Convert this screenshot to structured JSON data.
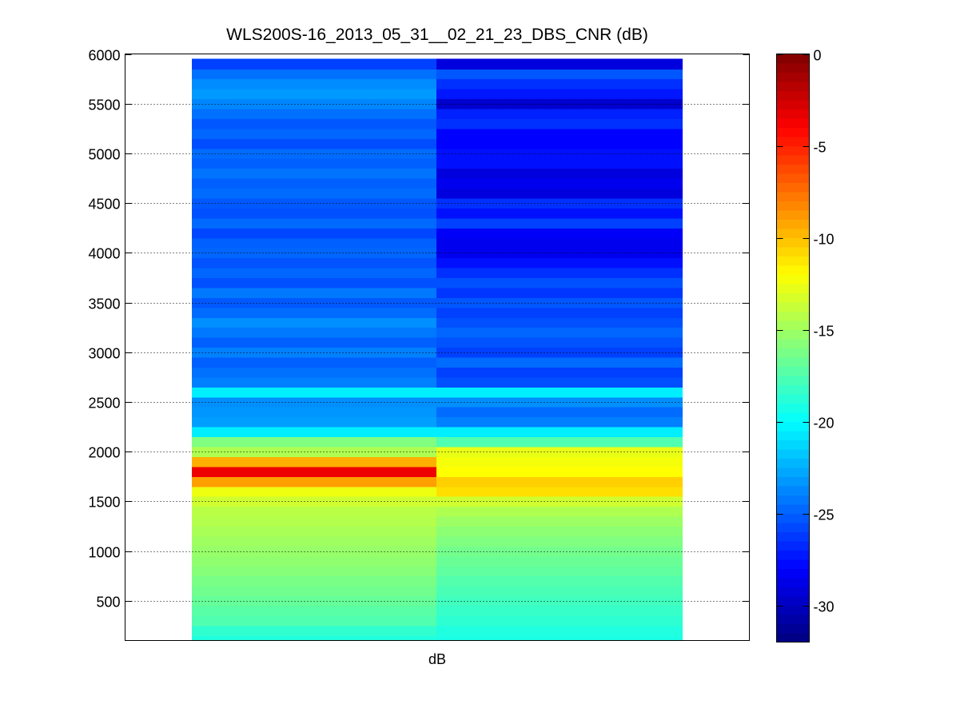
{
  "chart_data": {
    "type": "heatmap",
    "title": "WLS200S-16_2013_05_31__02_21_23_DBS_CNR (dB)",
    "xlabel": "dB",
    "ylabel": "",
    "xticks": [],
    "ylim": [
      100,
      6000
    ],
    "yticks": [
      500,
      1000,
      1500,
      2000,
      2500,
      3000,
      3500,
      4000,
      4500,
      5000,
      5500,
      6000
    ],
    "grid": true,
    "colormap": "jet",
    "colorbar": {
      "clim": [
        -32,
        0
      ],
      "ticks": [
        0,
        -5,
        -10,
        -15,
        -20,
        -25,
        -30
      ]
    },
    "bin_height": 100,
    "columns": [
      {
        "y": [
          100,
          200,
          300,
          400,
          500,
          600,
          700,
          800,
          900,
          1000,
          1100,
          1200,
          1300,
          1400,
          1500,
          1600,
          1700,
          1800,
          1900,
          2000,
          2100,
          2200,
          2300,
          2400,
          2500,
          2600,
          2700,
          2800,
          2900,
          3000,
          3100,
          3200,
          3300,
          3400,
          3500,
          3600,
          3700,
          3800,
          3900,
          4000,
          4100,
          4200,
          4300,
          4400,
          4500,
          4600,
          4700,
          4800,
          4900,
          5000,
          5100,
          5200,
          5300,
          5400,
          5500,
          5600,
          5700,
          5800,
          5900
        ],
        "values": [
          -19.0,
          -18.5,
          -17.5,
          -17.2,
          -16.8,
          -16.5,
          -16.2,
          -15.8,
          -15.5,
          -15.3,
          -15.0,
          -14.7,
          -14.4,
          -14.2,
          -13.5,
          -12.5,
          -9.0,
          -3.5,
          -9.5,
          -14.5,
          -16.0,
          -20.5,
          -23.0,
          -23.3,
          -23.5,
          -20.5,
          -24.0,
          -24.5,
          -25.0,
          -24.0,
          -25.0,
          -24.2,
          -23.5,
          -24.6,
          -25.2,
          -24.2,
          -25.5,
          -24.8,
          -25.4,
          -24.8,
          -25.0,
          -25.8,
          -24.7,
          -25.5,
          -25.2,
          -24.6,
          -25.0,
          -24.4,
          -25.0,
          -24.6,
          -25.6,
          -24.8,
          -25.3,
          -24.5,
          -23.8,
          -23.2,
          -23.6,
          -24.5,
          -26.0
        ]
      },
      {
        "y": [
          100,
          200,
          300,
          400,
          500,
          600,
          700,
          800,
          900,
          1000,
          1100,
          1200,
          1300,
          1400,
          1500,
          1600,
          1700,
          1800,
          1900,
          2000,
          2100,
          2200,
          2300,
          2400,
          2500,
          2600,
          2700,
          2800,
          2900,
          3000,
          3100,
          3200,
          3300,
          3400,
          3500,
          3600,
          3700,
          3800,
          3900,
          4000,
          4100,
          4200,
          4300,
          4400,
          4500,
          4600,
          4700,
          4800,
          4900,
          5000,
          5100,
          5200,
          5300,
          5400,
          5500,
          5600,
          5700,
          5800,
          5900
        ],
        "values": [
          -19.2,
          -19.0,
          -18.6,
          -18.3,
          -18.0,
          -17.7,
          -17.4,
          -17.0,
          -16.7,
          -16.4,
          -16.0,
          -15.6,
          -15.1,
          -14.5,
          -13.5,
          -11.0,
          -10.5,
          -12.0,
          -12.3,
          -12.7,
          -17.5,
          -20.5,
          -24.0,
          -24.6,
          -23.5,
          -20.5,
          -25.5,
          -26.0,
          -24.6,
          -26.0,
          -25.4,
          -24.8,
          -25.5,
          -26.0,
          -25.3,
          -26.3,
          -25.5,
          -26.5,
          -27.5,
          -28.5,
          -28.5,
          -28.2,
          -26.0,
          -27.5,
          -26.5,
          -29.0,
          -28.5,
          -29.0,
          -27.5,
          -27.5,
          -28.0,
          -28.0,
          -26.5,
          -27.0,
          -29.5,
          -27.3,
          -26.5,
          -25.3,
          -29.0
        ]
      }
    ]
  }
}
